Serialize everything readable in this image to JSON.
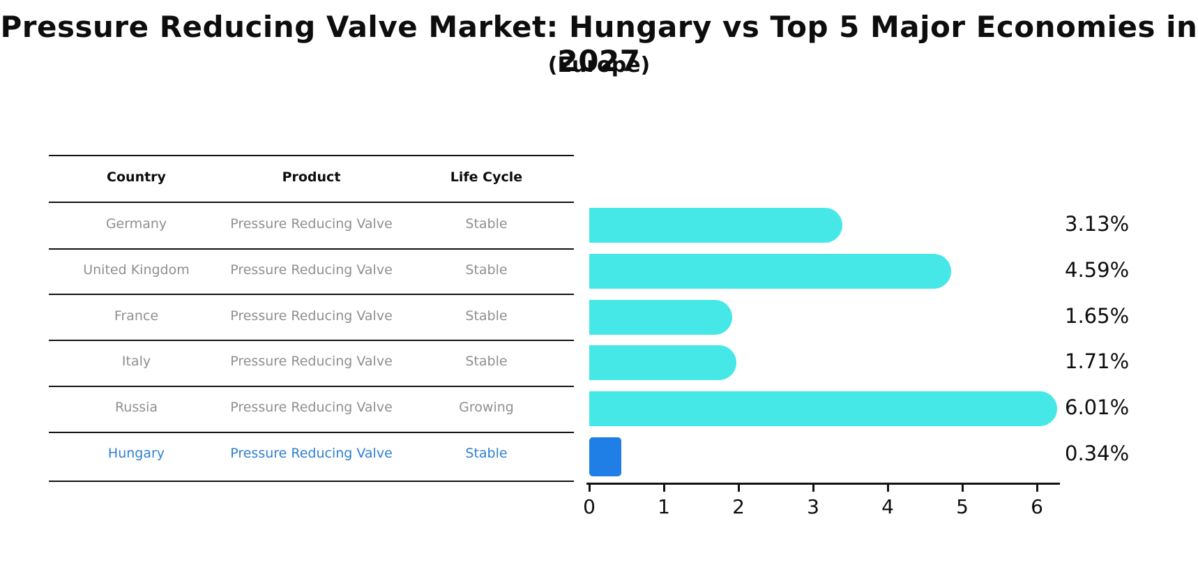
{
  "title": "Pressure Reducing Valve Market: Hungary vs Top 5 Major Economies in 2027",
  "subtitle": "(Europe)",
  "table": {
    "headers": [
      "Country",
      "Product",
      "Life Cycle"
    ],
    "rows": [
      {
        "country": "Germany",
        "product": "Pressure Reducing Valve",
        "life_cycle": "Stable",
        "highlight": false
      },
      {
        "country": "United Kingdom",
        "product": "Pressure Reducing Valve",
        "life_cycle": "Stable",
        "highlight": false
      },
      {
        "country": "France",
        "product": "Pressure Reducing Valve",
        "life_cycle": "Stable",
        "highlight": false
      },
      {
        "country": "Italy",
        "product": "Pressure Reducing Valve",
        "life_cycle": "Stable",
        "highlight": false
      },
      {
        "country": "Russia",
        "product": "Pressure Reducing Valve",
        "life_cycle": "Growing",
        "highlight": false
      },
      {
        "country": "Hungary",
        "product": "Pressure Reducing Valve",
        "life_cycle": "Stable",
        "highlight": true
      }
    ]
  },
  "chart_data": {
    "type": "bar",
    "orientation": "horizontal",
    "categories": [
      "Germany",
      "United Kingdom",
      "France",
      "Italy",
      "Russia",
      "Hungary"
    ],
    "values": [
      3.13,
      4.59,
      1.65,
      1.71,
      6.01,
      0.34
    ],
    "value_labels": [
      "3.13%",
      "4.59%",
      "1.65%",
      "1.71%",
      "6.01%",
      "0.34%"
    ],
    "x_ticks": [
      "0",
      "1",
      "2",
      "3",
      "4",
      "5",
      "6"
    ],
    "xlim": [
      0,
      6.3
    ],
    "title": "Pressure Reducing Valve Market: Hungary vs Top 5 Major Economies in 2027",
    "subtitle": "(Europe)",
    "xlabel": "",
    "ylabel": "",
    "grid": false,
    "legend": false,
    "highlight_index": 5
  },
  "colors": {
    "bar": "#45e7e7",
    "highlight_bar": "#1f7fe6",
    "highlight_text": "#2e7fd0",
    "row_text": "#8f8f8f",
    "axis": "#111111",
    "background": "#ffffff"
  }
}
